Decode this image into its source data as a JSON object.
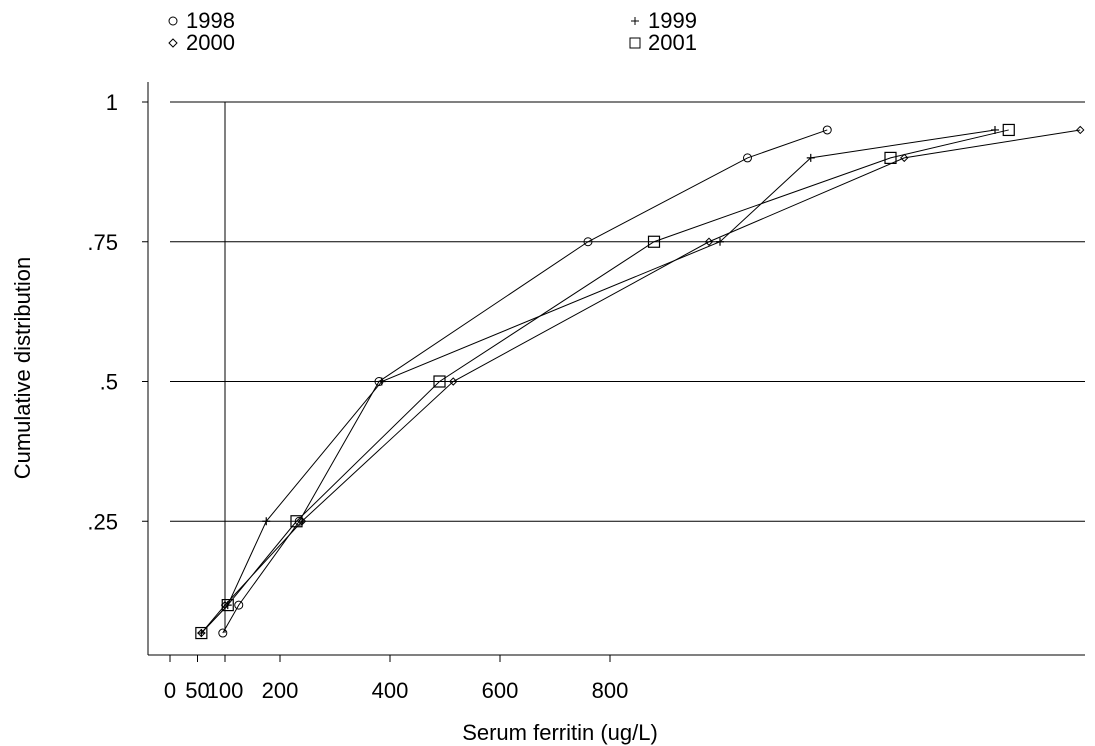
{
  "chart_data": {
    "type": "line",
    "xlabel": "Serum ferritin (ug/L)",
    "ylabel": "Cumulative distribution",
    "xlim": [
      0,
      1680
    ],
    "ylim": [
      0,
      1
    ],
    "x_ticks": [
      0,
      50,
      100,
      200,
      400,
      600,
      800
    ],
    "x_tick_labels": [
      "0",
      "50",
      "100",
      "200",
      "400",
      "600",
      "800"
    ],
    "y_ticks": [
      0.25,
      0.5,
      0.75,
      1
    ],
    "y_tick_labels": [
      ".25",
      ".5",
      ".75",
      "1"
    ],
    "reference_line_x": 100,
    "grid": "horizontal at y ticks",
    "legend_position": "top",
    "series": [
      {
        "name": "1998",
        "marker": "circle",
        "points": [
          [
            96,
            0.05
          ],
          [
            125,
            0.1
          ],
          [
            235,
            0.25
          ],
          [
            380,
            0.5
          ],
          [
            760,
            0.75
          ],
          [
            1050,
            0.9
          ],
          [
            1195,
            0.95
          ]
        ]
      },
      {
        "name": "1999",
        "marker": "plus",
        "points": [
          [
            57,
            0.05
          ],
          [
            105,
            0.1
          ],
          [
            175,
            0.25
          ],
          [
            385,
            0.5
          ],
          [
            1000,
            0.75
          ],
          [
            1165,
            0.9
          ],
          [
            1500,
            0.95
          ]
        ]
      },
      {
        "name": "2000",
        "marker": "diamond",
        "points": [
          [
            57,
            0.05
          ],
          [
            100,
            0.1
          ],
          [
            240,
            0.25
          ],
          [
            515,
            0.5
          ],
          [
            980,
            0.75
          ],
          [
            1335,
            0.9
          ],
          [
            1655,
            0.95
          ]
        ]
      },
      {
        "name": "2001",
        "marker": "square",
        "points": [
          [
            57,
            0.05
          ],
          [
            105,
            0.1
          ],
          [
            230,
            0.25
          ],
          [
            490,
            0.5
          ],
          [
            880,
            0.75
          ],
          [
            1310,
            0.9
          ],
          [
            1525,
            0.95
          ]
        ]
      }
    ]
  }
}
